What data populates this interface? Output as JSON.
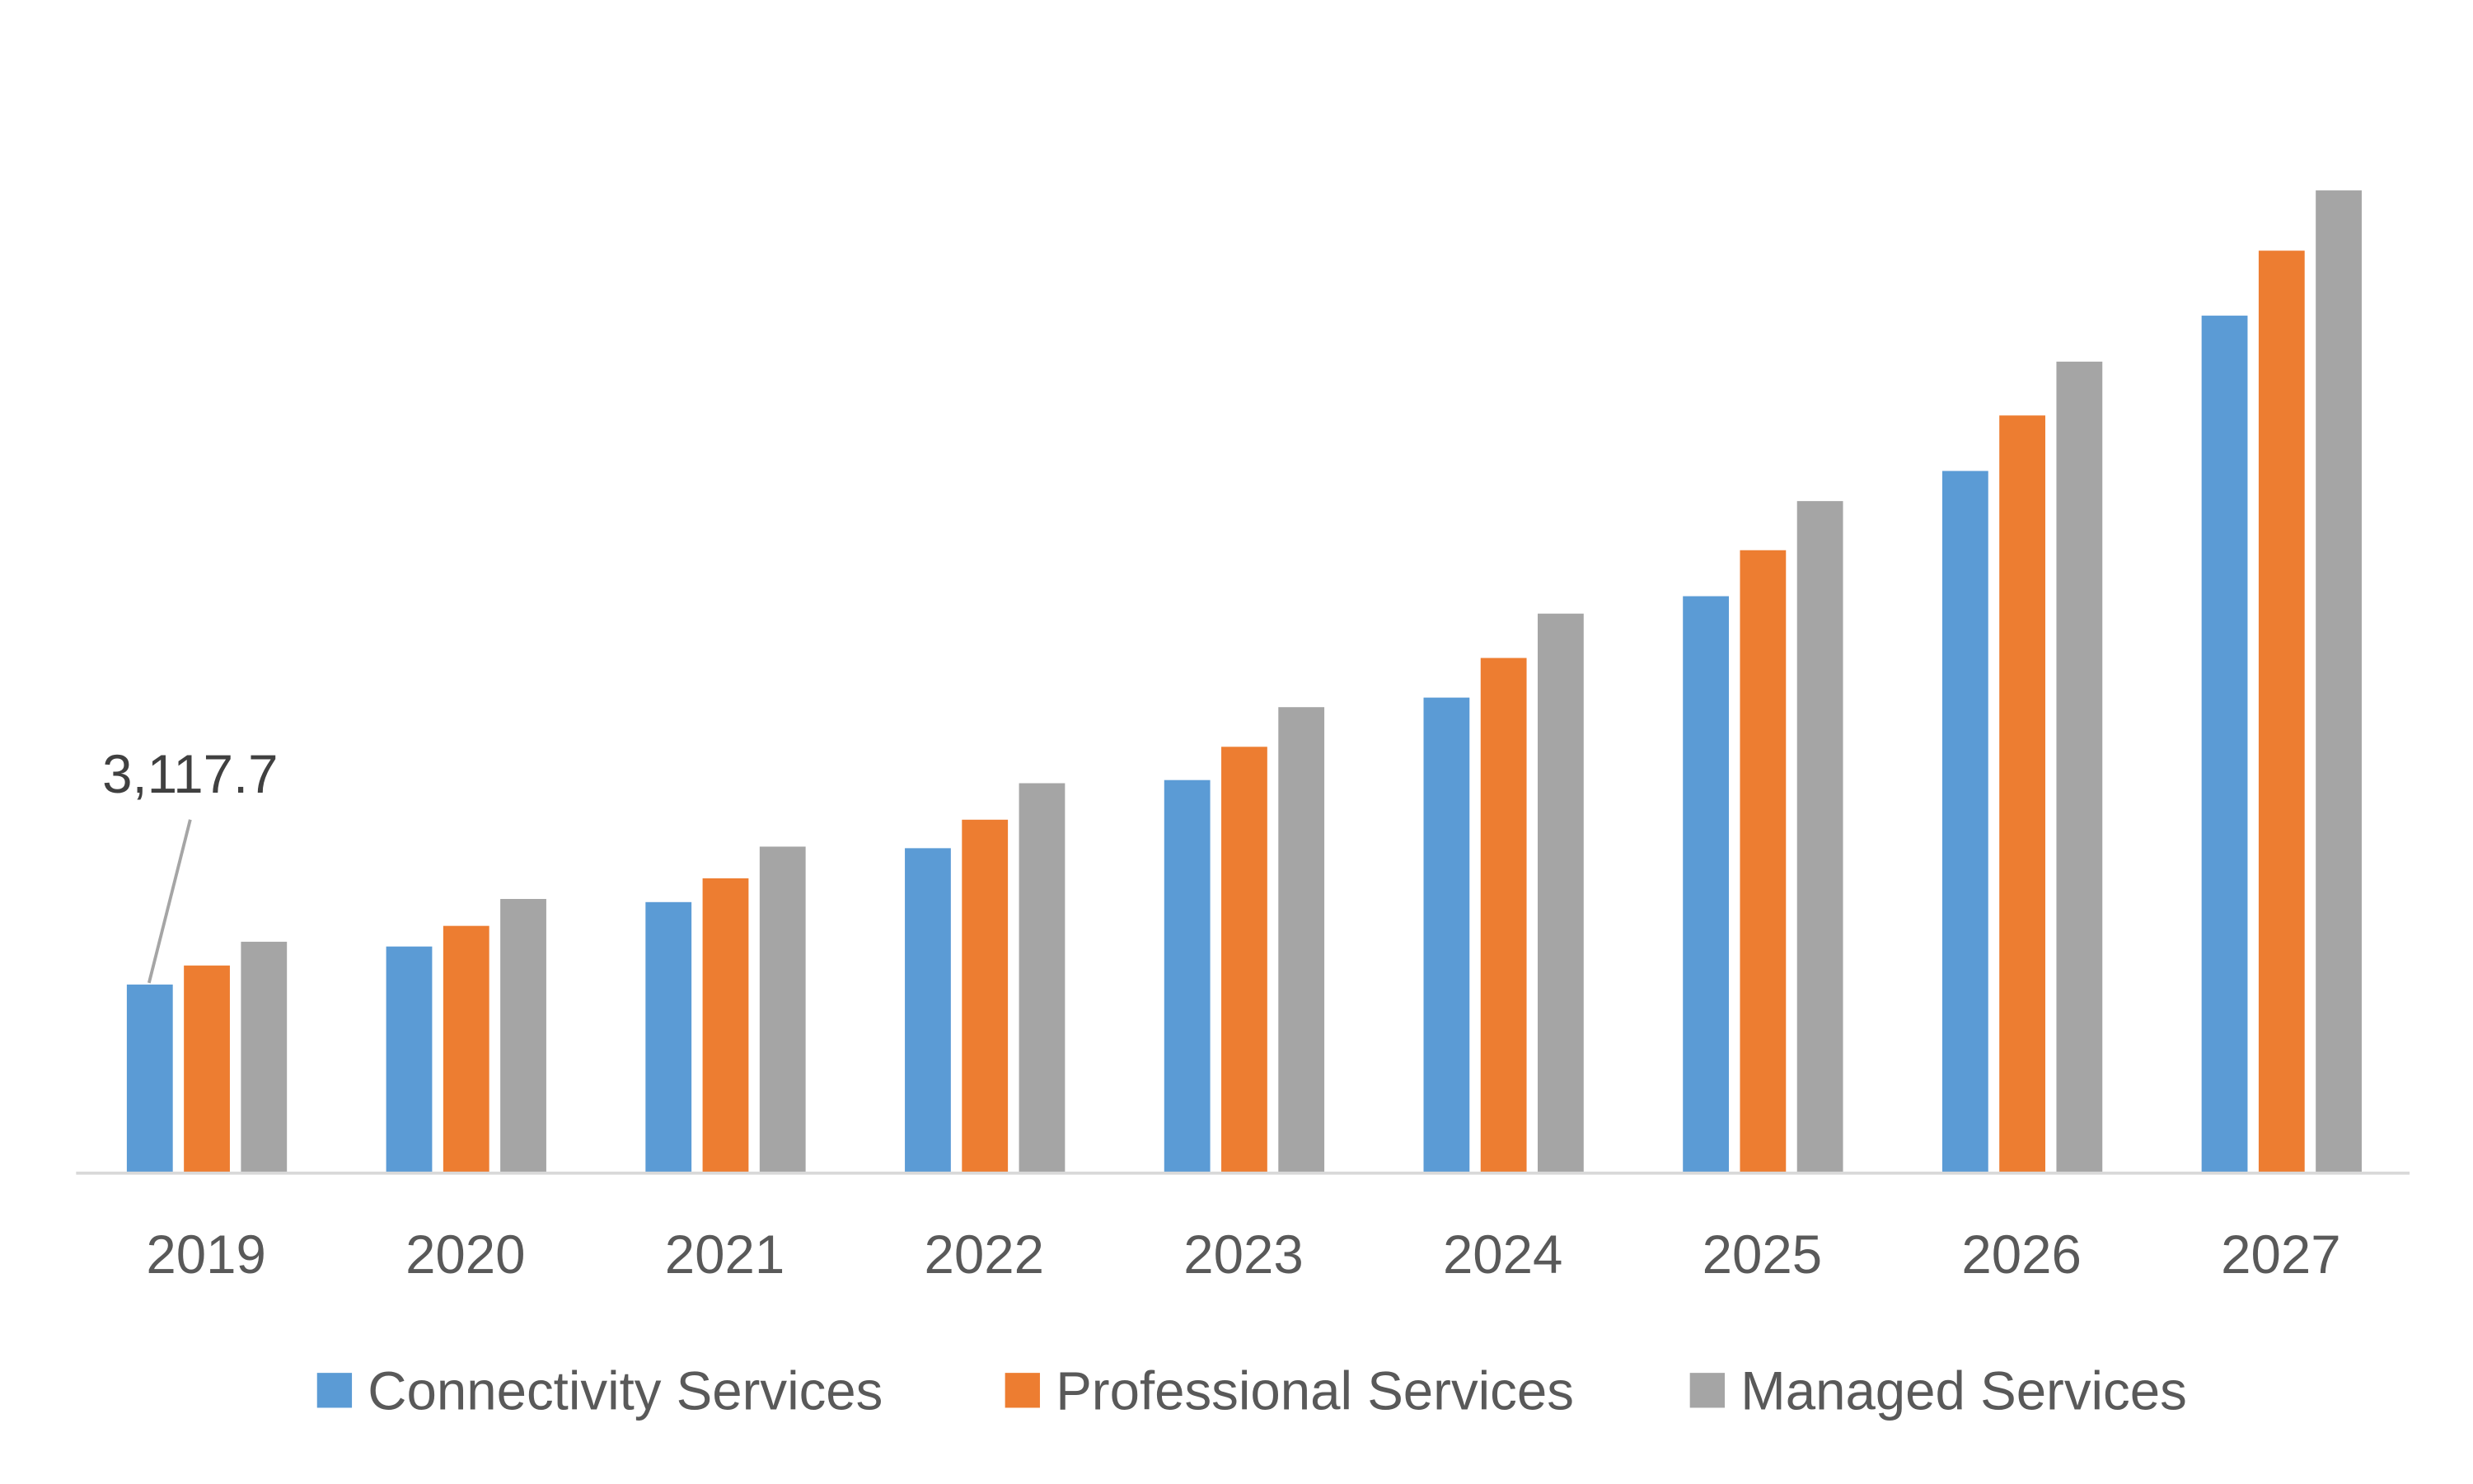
{
  "chart_data": {
    "type": "bar",
    "title": "",
    "xlabel": "",
    "ylabel": "",
    "categories": [
      "2019",
      "2020",
      "2021",
      "2022",
      "2023",
      "2024",
      "2025",
      "2026",
      "2027"
    ],
    "series": [
      {
        "name": "Connectivity Services",
        "color": "#5B9BD5",
        "values": [
          3117.7,
          3746,
          4480,
          5371,
          6497,
          7860,
          9536,
          11606,
          14173
        ]
      },
      {
        "name": "Professional Services",
        "color": "#ED7D31",
        "values": [
          3432,
          4087,
          4873,
          5842,
          7047,
          8515,
          10296,
          12523,
          15247
        ]
      },
      {
        "name": "Managed Services",
        "color": "#A5A5A5",
        "values": [
          3825,
          4532,
          5397,
          6445,
          7702,
          9248,
          11108,
          13413,
          16243
        ]
      }
    ],
    "annotations": [
      {
        "text": "3,117.7",
        "category": "2019",
        "series": "Connectivity Services"
      }
    ],
    "grid": false,
    "legend_position": "bottom",
    "y_axis_visible": false
  }
}
